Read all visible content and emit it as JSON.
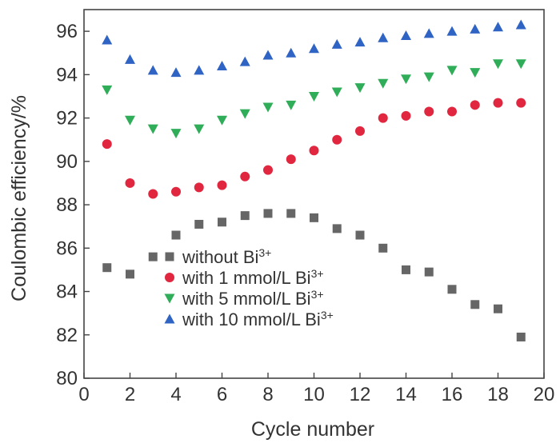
{
  "chart_data": {
    "type": "scatter",
    "xlabel": "Cycle number",
    "ylabel": "Coulombic efficiency/%",
    "xlim": [
      0,
      20
    ],
    "ylim": [
      80,
      97
    ],
    "xticks": [
      0,
      2,
      4,
      6,
      8,
      10,
      12,
      14,
      16,
      18,
      20
    ],
    "yticks": [
      80,
      82,
      84,
      86,
      88,
      90,
      92,
      94,
      96
    ],
    "grid": false,
    "legend_position": "bottom-left",
    "x": [
      1,
      2,
      3,
      4,
      5,
      6,
      7,
      8,
      9,
      10,
      11,
      12,
      13,
      14,
      15,
      16,
      17,
      18,
      19
    ],
    "series": [
      {
        "name": "without Bi",
        "superscript": "3+",
        "marker": "square",
        "color": "#666666",
        "values": [
          85.1,
          84.8,
          85.6,
          86.6,
          87.1,
          87.2,
          87.5,
          87.6,
          87.6,
          87.4,
          86.9,
          86.6,
          86.0,
          85.0,
          84.9,
          84.1,
          83.4,
          83.2,
          81.9
        ]
      },
      {
        "name": "with 1 mmol/L Bi",
        "superscript": "3+",
        "marker": "circle",
        "color": "#e0273f",
        "values": [
          90.8,
          89.0,
          88.5,
          88.6,
          88.8,
          88.9,
          89.3,
          89.6,
          90.1,
          90.5,
          91.0,
          91.4,
          92.0,
          92.1,
          92.3,
          92.3,
          92.6,
          92.7,
          92.7
        ]
      },
      {
        "name": "with 5 mmol/L Bi",
        "superscript": "3+",
        "marker": "triangle-down",
        "color": "#2fad58",
        "values": [
          93.3,
          91.9,
          91.5,
          91.3,
          91.5,
          91.9,
          92.2,
          92.5,
          92.6,
          93.0,
          93.2,
          93.4,
          93.6,
          93.8,
          93.9,
          94.2,
          94.1,
          94.5,
          94.5
        ]
      },
      {
        "name": "with 10 mmol/L Bi",
        "superscript": "3+",
        "marker": "triangle-up",
        "color": "#2f63c4",
        "values": [
          95.6,
          94.7,
          94.2,
          94.1,
          94.2,
          94.4,
          94.6,
          94.9,
          95.0,
          95.2,
          95.4,
          95.5,
          95.7,
          95.8,
          95.9,
          96.0,
          96.1,
          96.2,
          96.3
        ]
      }
    ]
  }
}
